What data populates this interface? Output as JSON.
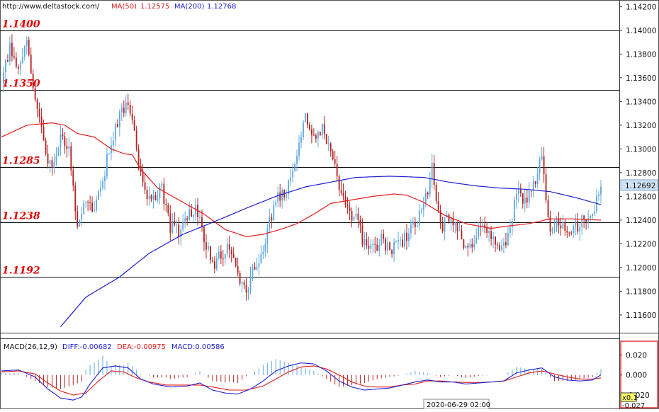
{
  "header": {
    "site": "http://www.deltastock.com/",
    "ma50_label": "MA(50)",
    "ma50_value": "1.12575",
    "ma200_label": "MA(200)",
    "ma200_value": "1.12768"
  },
  "colors": {
    "up_candle": "#5fa8dd",
    "down_candle": "#b22222",
    "ma50": "#e41a1a",
    "ma200": "#1f1fd0",
    "level_text": "#e00000",
    "macd_diff": "#1f1fd0",
    "macd_dea": "#e41a1a",
    "price_badge": "#cfe3f7"
  },
  "macd_header": {
    "name": "MACD(26,12,9)",
    "diff": "DIFF:-0.00682",
    "dea": "DEA:-0.00975",
    "macd": "MACD:0.00586"
  },
  "date_label": "2020-06-29 02:00",
  "corner_label": "x0.1",
  "chart_data": [
    {
      "type": "candlestick",
      "ylim": [
        1.1145,
        1.1425
      ],
      "yticks": [
        "1.14200",
        "1.14000",
        "1.13800",
        "1.13600",
        "1.13400",
        "1.13200",
        "1.13000",
        "1.12800",
        "1.12600",
        "1.12400",
        "1.12200",
        "1.12000",
        "1.11800",
        "1.11600"
      ],
      "last_price": "1.12692",
      "levels": [
        {
          "value": 1.14,
          "label": "1.1400"
        },
        {
          "value": 1.135,
          "label": "1.1350"
        },
        {
          "value": 1.1285,
          "label": "1.1285"
        },
        {
          "value": 1.1238,
          "label": "1.1238"
        },
        {
          "value": 1.1192,
          "label": "1.1192"
        }
      ],
      "close_path": [
        [
          0,
          1.1355
        ],
        [
          4,
          1.1385
        ],
        [
          8,
          1.137
        ],
        [
          12,
          1.1395
        ],
        [
          16,
          1.134
        ],
        [
          20,
          1.1305
        ],
        [
          24,
          1.1282
        ],
        [
          28,
          1.131
        ],
        [
          32,
          1.13
        ],
        [
          36,
          1.1235
        ],
        [
          40,
          1.1255
        ],
        [
          44,
          1.1248
        ],
        [
          48,
          1.1275
        ],
        [
          52,
          1.1305
        ],
        [
          56,
          1.133
        ],
        [
          60,
          1.1342
        ],
        [
          64,
          1.13
        ],
        [
          68,
          1.126
        ],
        [
          72,
          1.1258
        ],
        [
          76,
          1.1265
        ],
        [
          80,
          1.1235
        ],
        [
          84,
          1.123
        ],
        [
          88,
          1.1245
        ],
        [
          92,
          1.125
        ],
        [
          96,
          1.1225
        ],
        [
          100,
          1.12
        ],
        [
          104,
          1.121
        ],
        [
          108,
          1.122
        ],
        [
          112,
          1.119
        ],
        [
          116,
          1.118
        ],
        [
          120,
          1.12
        ],
        [
          124,
          1.1215
        ],
        [
          128,
          1.1245
        ],
        [
          132,
          1.1262
        ],
        [
          136,
          1.1268
        ],
        [
          140,
          1.13
        ],
        [
          144,
          1.133
        ],
        [
          148,
          1.131
        ],
        [
          152,
          1.1318
        ],
        [
          156,
          1.13
        ],
        [
          160,
          1.127
        ],
        [
          164,
          1.125
        ],
        [
          168,
          1.124
        ],
        [
          172,
          1.122
        ],
        [
          176,
          1.1215
        ],
        [
          180,
          1.1225
        ],
        [
          184,
          1.1212
        ],
        [
          188,
          1.122
        ],
        [
          192,
          1.1225
        ],
        [
          196,
          1.1236
        ],
        [
          200,
          1.125
        ],
        [
          204,
          1.1285
        ],
        [
          208,
          1.1235
        ],
        [
          212,
          1.124
        ],
        [
          216,
          1.1236
        ],
        [
          220,
          1.1215
        ],
        [
          224,
          1.1225
        ],
        [
          228,
          1.1238
        ],
        [
          232,
          1.123
        ],
        [
          236,
          1.1215
        ],
        [
          240,
          1.1225
        ],
        [
          244,
          1.1265
        ],
        [
          248,
          1.1255
        ],
        [
          252,
          1.127
        ],
        [
          256,
          1.1292
        ],
        [
          260,
          1.123
        ],
        [
          264,
          1.1237
        ],
        [
          268,
          1.1228
        ],
        [
          272,
          1.1235
        ],
        [
          276,
          1.124
        ],
        [
          280,
          1.1248
        ],
        [
          284,
          1.1269
        ]
      ],
      "ma50_path": [
        [
          0,
          1.131
        ],
        [
          12,
          1.132
        ],
        [
          24,
          1.1322
        ],
        [
          30,
          1.132
        ],
        [
          36,
          1.1313
        ],
        [
          44,
          1.131
        ],
        [
          52,
          1.13
        ],
        [
          58,
          1.1296
        ],
        [
          62,
          1.1295
        ],
        [
          66,
          1.1283
        ],
        [
          74,
          1.1267
        ],
        [
          86,
          1.1255
        ],
        [
          96,
          1.1245
        ],
        [
          106,
          1.1232
        ],
        [
          116,
          1.1226
        ],
        [
          124,
          1.1228
        ],
        [
          132,
          1.1232
        ],
        [
          140,
          1.1237
        ],
        [
          148,
          1.1245
        ],
        [
          156,
          1.1254
        ],
        [
          166,
          1.1257
        ],
        [
          176,
          1.126
        ],
        [
          186,
          1.1262
        ],
        [
          192,
          1.1261
        ],
        [
          200,
          1.1255
        ],
        [
          210,
          1.1244
        ],
        [
          220,
          1.1237
        ],
        [
          232,
          1.1233
        ],
        [
          240,
          1.1235
        ],
        [
          250,
          1.1237
        ],
        [
          260,
          1.1241
        ],
        [
          270,
          1.1241
        ],
        [
          284,
          1.124
        ]
      ],
      "ma200_path": [
        [
          28,
          1.115
        ],
        [
          40,
          1.1175
        ],
        [
          56,
          1.1192
        ],
        [
          70,
          1.1212
        ],
        [
          86,
          1.1228
        ],
        [
          100,
          1.1238
        ],
        [
          116,
          1.125
        ],
        [
          130,
          1.126
        ],
        [
          144,
          1.1268
        ],
        [
          156,
          1.1272
        ],
        [
          168,
          1.1276
        ],
        [
          184,
          1.1277
        ],
        [
          200,
          1.1276
        ],
        [
          212,
          1.1272
        ],
        [
          224,
          1.1269
        ],
        [
          236,
          1.1267
        ],
        [
          248,
          1.1266
        ],
        [
          260,
          1.1264
        ],
        [
          272,
          1.1259
        ],
        [
          284,
          1.1253
        ]
      ]
    },
    {
      "type": "line",
      "title": "MACD(26,12,9)",
      "ylim": [
        -0.027,
        0.035
      ],
      "yticks": [
        "0.020",
        "0.000",
        "-0.020"
      ],
      "bottom_value": "-0.027",
      "series": [
        {
          "name": "DIFF",
          "color": "#1f1fd0",
          "points": [
            [
              0,
              0.004
            ],
            [
              8,
              0.005
            ],
            [
              16,
              -0.002
            ],
            [
              22,
              -0.014
            ],
            [
              28,
              -0.023
            ],
            [
              34,
              -0.025
            ],
            [
              38,
              -0.022
            ],
            [
              42,
              -0.009
            ],
            [
              48,
              0.007
            ],
            [
              54,
              0.009
            ],
            [
              60,
              0.007
            ],
            [
              66,
              -0.004
            ],
            [
              72,
              -0.009
            ],
            [
              80,
              -0.012
            ],
            [
              88,
              -0.011
            ],
            [
              94,
              -0.008
            ],
            [
              100,
              -0.015
            ],
            [
              106,
              -0.018
            ],
            [
              112,
              -0.019
            ],
            [
              118,
              -0.014
            ],
            [
              124,
              -0.006
            ],
            [
              130,
              0.004
            ],
            [
              136,
              0.009
            ],
            [
              142,
              0.012
            ],
            [
              148,
              0.011
            ],
            [
              154,
              0.004
            ],
            [
              160,
              -0.006
            ],
            [
              166,
              -0.012
            ],
            [
              172,
              -0.015
            ],
            [
              178,
              -0.014
            ],
            [
              184,
              -0.013
            ],
            [
              190,
              -0.01
            ],
            [
              196,
              -0.007
            ],
            [
              202,
              -0.005
            ],
            [
              208,
              -0.007
            ],
            [
              214,
              -0.007
            ],
            [
              220,
              -0.009
            ],
            [
              226,
              -0.008
            ],
            [
              232,
              -0.007
            ],
            [
              238,
              -0.006
            ],
            [
              244,
              0.002
            ],
            [
              250,
              0.005
            ],
            [
              256,
              0.007
            ],
            [
              262,
              -0.002
            ],
            [
              268,
              -0.005
            ],
            [
              274,
              -0.006
            ],
            [
              280,
              -0.005
            ],
            [
              284,
              0.0
            ]
          ]
        },
        {
          "name": "DEA",
          "color": "#e41a1a",
          "points": [
            [
              0,
              0.003
            ],
            [
              8,
              0.004
            ],
            [
              16,
              0.001
            ],
            [
              22,
              -0.008
            ],
            [
              28,
              -0.016
            ],
            [
              34,
              -0.02
            ],
            [
              40,
              -0.018
            ],
            [
              46,
              -0.006
            ],
            [
              52,
              0.004
            ],
            [
              58,
              0.003
            ],
            [
              64,
              -0.003
            ],
            [
              70,
              -0.007
            ],
            [
              78,
              -0.01
            ],
            [
              86,
              -0.01
            ],
            [
              94,
              -0.01
            ],
            [
              100,
              -0.012
            ],
            [
              108,
              -0.015
            ],
            [
              116,
              -0.015
            ],
            [
              124,
              -0.011
            ],
            [
              130,
              -0.004
            ],
            [
              136,
              0.003
            ],
            [
              142,
              0.008
            ],
            [
              148,
              0.009
            ],
            [
              154,
              0.006
            ],
            [
              160,
              0.0
            ],
            [
              166,
              -0.007
            ],
            [
              172,
              -0.011
            ],
            [
              178,
              -0.012
            ],
            [
              184,
              -0.012
            ],
            [
              190,
              -0.01
            ],
            [
              196,
              -0.009
            ],
            [
              202,
              -0.006
            ],
            [
              208,
              -0.006
            ],
            [
              214,
              -0.007
            ],
            [
              220,
              -0.0075
            ],
            [
              226,
              -0.0075
            ],
            [
              232,
              -0.007
            ],
            [
              238,
              -0.006
            ],
            [
              244,
              -0.002
            ],
            [
              250,
              0.002
            ],
            [
              256,
              0.004
            ],
            [
              262,
              0.001
            ],
            [
              268,
              -0.002
            ],
            [
              274,
              -0.004
            ],
            [
              280,
              -0.004
            ],
            [
              284,
              -0.003
            ]
          ]
        }
      ]
    }
  ]
}
